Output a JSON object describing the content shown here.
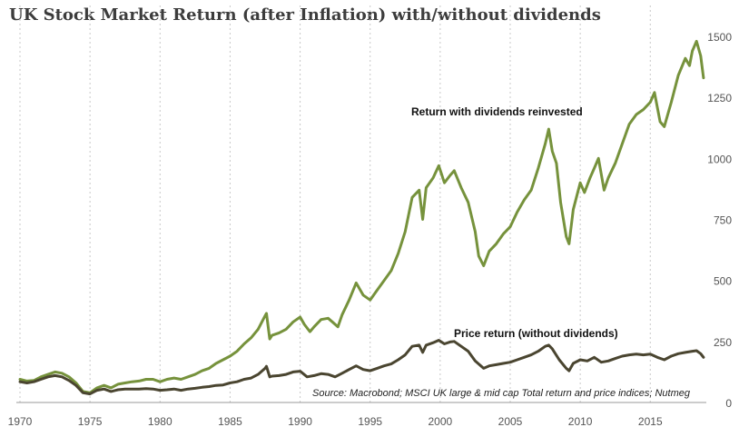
{
  "chart_data": {
    "type": "line",
    "title": "UK Stock Market Return (after Inflation) with/without dividends",
    "xlabel": "",
    "ylabel": "",
    "xlim": [
      1970,
      2019
    ],
    "ylim": [
      0,
      1500
    ],
    "x_ticks": [
      "1970",
      "1975",
      "1980",
      "1985",
      "1990",
      "1995",
      "2000",
      "2005",
      "2010",
      "2015"
    ],
    "y_ticks": [
      "0",
      "250",
      "500",
      "750",
      "1000",
      "1250",
      "1500"
    ],
    "grid": "vertical dotted lines",
    "y_axis_side": "right",
    "source": "Source: Macrobond; MSCI UK large & mid cap Total return and price indices; Nutmeg",
    "series": [
      {
        "name": "Return with dividends reinvested",
        "color": "#76923c",
        "points": [
          [
            1970.0,
            95
          ],
          [
            1970.5,
            88
          ],
          [
            1971.0,
            90
          ],
          [
            1971.5,
            105
          ],
          [
            1972.0,
            115
          ],
          [
            1972.5,
            125
          ],
          [
            1973.0,
            120
          ],
          [
            1973.5,
            105
          ],
          [
            1974.0,
            80
          ],
          [
            1974.5,
            45
          ],
          [
            1975.0,
            40
          ],
          [
            1975.5,
            60
          ],
          [
            1976.0,
            70
          ],
          [
            1976.5,
            60
          ],
          [
            1977.0,
            75
          ],
          [
            1977.5,
            80
          ],
          [
            1978.0,
            85
          ],
          [
            1978.5,
            88
          ],
          [
            1979.0,
            95
          ],
          [
            1979.5,
            95
          ],
          [
            1980.0,
            85
          ],
          [
            1980.5,
            95
          ],
          [
            1981.0,
            100
          ],
          [
            1981.5,
            95
          ],
          [
            1982.0,
            105
          ],
          [
            1982.5,
            115
          ],
          [
            1983.0,
            130
          ],
          [
            1983.5,
            140
          ],
          [
            1984.0,
            160
          ],
          [
            1984.5,
            175
          ],
          [
            1985.0,
            190
          ],
          [
            1985.5,
            210
          ],
          [
            1986.0,
            240
          ],
          [
            1986.5,
            265
          ],
          [
            1987.0,
            300
          ],
          [
            1987.5,
            355
          ],
          [
            1987.6,
            365
          ],
          [
            1987.83,
            260
          ],
          [
            1988.0,
            275
          ],
          [
            1988.5,
            285
          ],
          [
            1989.0,
            300
          ],
          [
            1989.5,
            330
          ],
          [
            1990.0,
            350
          ],
          [
            1990.3,
            320
          ],
          [
            1990.7,
            290
          ],
          [
            1991.0,
            310
          ],
          [
            1991.5,
            340
          ],
          [
            1992.0,
            345
          ],
          [
            1992.3,
            330
          ],
          [
            1992.7,
            310
          ],
          [
            1993.0,
            360
          ],
          [
            1993.5,
            420
          ],
          [
            1994.0,
            490
          ],
          [
            1994.5,
            440
          ],
          [
            1995.0,
            420
          ],
          [
            1995.5,
            460
          ],
          [
            1996.0,
            500
          ],
          [
            1996.5,
            540
          ],
          [
            1997.0,
            610
          ],
          [
            1997.5,
            700
          ],
          [
            1998.0,
            840
          ],
          [
            1998.5,
            870
          ],
          [
            1998.75,
            750
          ],
          [
            1999.0,
            880
          ],
          [
            1999.5,
            920
          ],
          [
            1999.9,
            970
          ],
          [
            2000.3,
            900
          ],
          [
            2000.7,
            930
          ],
          [
            2001.0,
            950
          ],
          [
            2001.5,
            880
          ],
          [
            2002.0,
            820
          ],
          [
            2002.5,
            700
          ],
          [
            2002.75,
            600
          ],
          [
            2003.1,
            560
          ],
          [
            2003.5,
            620
          ],
          [
            2004.0,
            650
          ],
          [
            2004.5,
            690
          ],
          [
            2005.0,
            720
          ],
          [
            2005.5,
            780
          ],
          [
            2006.0,
            830
          ],
          [
            2006.5,
            870
          ],
          [
            2007.0,
            960
          ],
          [
            2007.5,
            1060
          ],
          [
            2007.75,
            1120
          ],
          [
            2008.0,
            1030
          ],
          [
            2008.3,
            980
          ],
          [
            2008.6,
            820
          ],
          [
            2009.0,
            680
          ],
          [
            2009.2,
            650
          ],
          [
            2009.5,
            790
          ],
          [
            2010.0,
            900
          ],
          [
            2010.3,
            860
          ],
          [
            2010.7,
            920
          ],
          [
            2011.0,
            960
          ],
          [
            2011.3,
            1000
          ],
          [
            2011.7,
            870
          ],
          [
            2012.0,
            920
          ],
          [
            2012.5,
            980
          ],
          [
            2013.0,
            1060
          ],
          [
            2013.5,
            1140
          ],
          [
            2014.0,
            1180
          ],
          [
            2014.5,
            1200
          ],
          [
            2015.0,
            1230
          ],
          [
            2015.3,
            1270
          ],
          [
            2015.7,
            1150
          ],
          [
            2016.0,
            1130
          ],
          [
            2016.5,
            1230
          ],
          [
            2017.0,
            1340
          ],
          [
            2017.5,
            1410
          ],
          [
            2017.8,
            1380
          ],
          [
            2018.0,
            1440
          ],
          [
            2018.3,
            1480
          ],
          [
            2018.6,
            1420
          ],
          [
            2018.8,
            1330
          ]
        ]
      },
      {
        "name": "Price return (without dividends)",
        "color": "#4a4530",
        "points": [
          [
            1970.0,
            85
          ],
          [
            1970.5,
            80
          ],
          [
            1971.0,
            85
          ],
          [
            1971.5,
            95
          ],
          [
            1972.0,
            105
          ],
          [
            1972.5,
            110
          ],
          [
            1973.0,
            105
          ],
          [
            1973.5,
            90
          ],
          [
            1974.0,
            70
          ],
          [
            1974.5,
            40
          ],
          [
            1975.0,
            35
          ],
          [
            1975.5,
            50
          ],
          [
            1976.0,
            55
          ],
          [
            1976.5,
            45
          ],
          [
            1977.0,
            52
          ],
          [
            1977.5,
            55
          ],
          [
            1978.0,
            55
          ],
          [
            1978.5,
            55
          ],
          [
            1979.0,
            57
          ],
          [
            1979.5,
            55
          ],
          [
            1980.0,
            50
          ],
          [
            1980.5,
            52
          ],
          [
            1981.0,
            55
          ],
          [
            1981.5,
            50
          ],
          [
            1982.0,
            55
          ],
          [
            1982.5,
            58
          ],
          [
            1983.0,
            62
          ],
          [
            1983.5,
            65
          ],
          [
            1984.0,
            70
          ],
          [
            1984.5,
            72
          ],
          [
            1985.0,
            80
          ],
          [
            1985.5,
            85
          ],
          [
            1986.0,
            95
          ],
          [
            1986.5,
            100
          ],
          [
            1987.0,
            115
          ],
          [
            1987.5,
            140
          ],
          [
            1987.6,
            148
          ],
          [
            1987.83,
            105
          ],
          [
            1988.0,
            108
          ],
          [
            1988.5,
            110
          ],
          [
            1989.0,
            115
          ],
          [
            1989.5,
            125
          ],
          [
            1990.0,
            128
          ],
          [
            1990.5,
            105
          ],
          [
            1991.0,
            110
          ],
          [
            1991.5,
            118
          ],
          [
            1992.0,
            115
          ],
          [
            1992.5,
            105
          ],
          [
            1993.0,
            120
          ],
          [
            1993.5,
            135
          ],
          [
            1994.0,
            150
          ],
          [
            1994.5,
            135
          ],
          [
            1995.0,
            130
          ],
          [
            1995.5,
            140
          ],
          [
            1996.0,
            150
          ],
          [
            1996.5,
            158
          ],
          [
            1997.0,
            175
          ],
          [
            1997.5,
            195
          ],
          [
            1998.0,
            230
          ],
          [
            1998.5,
            235
          ],
          [
            1998.75,
            205
          ],
          [
            1999.0,
            235
          ],
          [
            1999.5,
            245
          ],
          [
            1999.9,
            255
          ],
          [
            2000.3,
            240
          ],
          [
            2000.7,
            248
          ],
          [
            2001.0,
            250
          ],
          [
            2001.5,
            230
          ],
          [
            2002.0,
            210
          ],
          [
            2002.5,
            170
          ],
          [
            2003.1,
            140
          ],
          [
            2003.5,
            150
          ],
          [
            2004.0,
            155
          ],
          [
            2004.5,
            160
          ],
          [
            2005.0,
            165
          ],
          [
            2005.5,
            175
          ],
          [
            2006.0,
            185
          ],
          [
            2006.5,
            195
          ],
          [
            2007.0,
            210
          ],
          [
            2007.5,
            230
          ],
          [
            2007.75,
            235
          ],
          [
            2008.0,
            220
          ],
          [
            2008.5,
            175
          ],
          [
            2009.0,
            140
          ],
          [
            2009.2,
            130
          ],
          [
            2009.5,
            160
          ],
          [
            2010.0,
            175
          ],
          [
            2010.5,
            170
          ],
          [
            2011.0,
            185
          ],
          [
            2011.5,
            165
          ],
          [
            2012.0,
            170
          ],
          [
            2012.5,
            180
          ],
          [
            2013.0,
            190
          ],
          [
            2013.5,
            195
          ],
          [
            2014.0,
            198
          ],
          [
            2014.5,
            195
          ],
          [
            2015.0,
            198
          ],
          [
            2015.5,
            185
          ],
          [
            2016.0,
            175
          ],
          [
            2016.5,
            190
          ],
          [
            2017.0,
            200
          ],
          [
            2017.5,
            205
          ],
          [
            2018.0,
            210
          ],
          [
            2018.3,
            212
          ],
          [
            2018.6,
            200
          ],
          [
            2018.8,
            185
          ]
        ]
      }
    ],
    "annotations": [
      {
        "text": "Return with dividends reinvested",
        "series": 0
      },
      {
        "text": "Price return (without dividends)",
        "series": 1
      }
    ]
  },
  "colors": {
    "grid": "#c8c8c8",
    "baseline": "#999999",
    "tick_text": "#555555"
  }
}
